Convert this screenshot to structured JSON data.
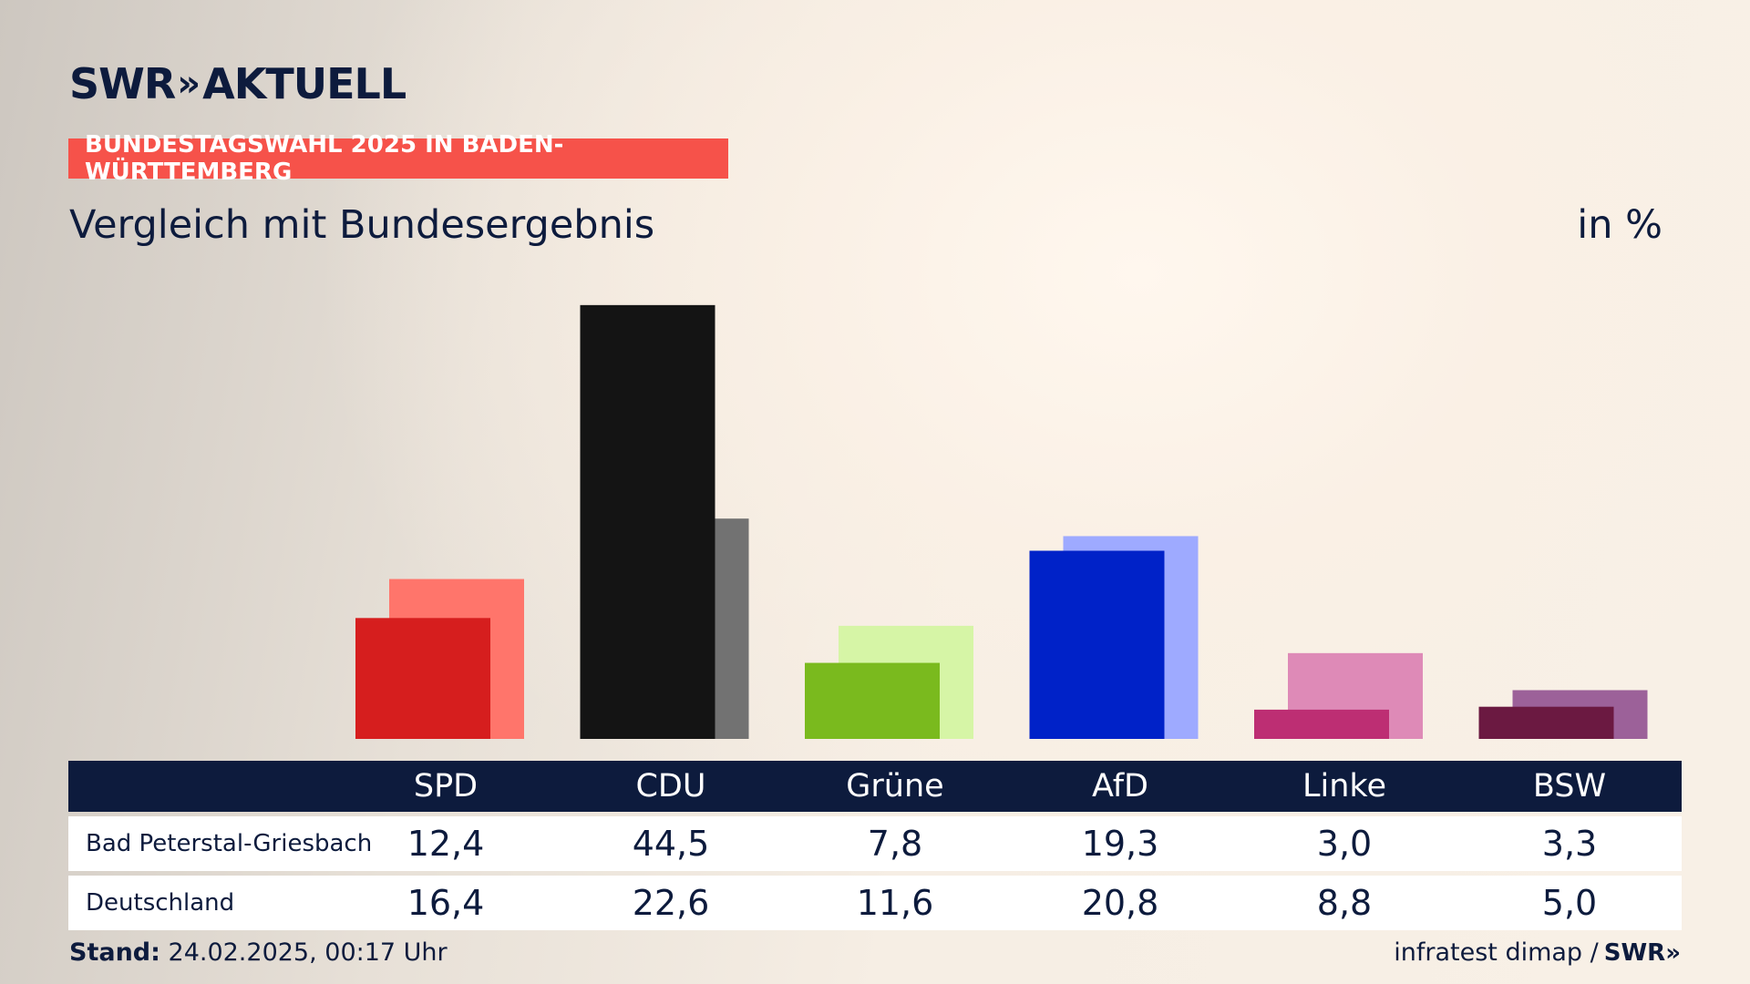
{
  "header": {
    "logo_text": "SWR",
    "logo_chevrons": "»",
    "logo_suffix": "AKTUELL",
    "badge": "BUNDESTAGSWAHL 2025 IN BADEN-WÜRTTEMBERG",
    "subtitle": "Vergleich mit Bundesergebnis",
    "unit": "in %"
  },
  "colors": {
    "primary": [
      "#d61e1e",
      "#141414",
      "#7aba1e",
      "#0022c8",
      "#bd2e73",
      "#6b1941"
    ],
    "secondary": [
      "#ff756b",
      "#727272",
      "#d6f5a6",
      "#9eaaff",
      "#de8ab7",
      "#9c6199"
    ],
    "navy": "#0d1b3d",
    "badge": "#f6524a"
  },
  "chart_data": {
    "type": "bar",
    "categories": [
      "SPD",
      "CDU",
      "Grüne",
      "AfD",
      "Linke",
      "BSW"
    ],
    "series": [
      {
        "name": "Bad Peterstal-Griesbach",
        "values": [
          12.4,
          44.5,
          7.8,
          19.3,
          3.0,
          3.3
        ]
      },
      {
        "name": "Deutschland",
        "values": [
          16.4,
          22.6,
          11.6,
          20.8,
          8.8,
          5.0
        ]
      }
    ]
  },
  "table": {
    "headers": [
      "SPD",
      "CDU",
      "Grüne",
      "AfD",
      "Linke",
      "BSW"
    ],
    "rows": [
      {
        "label": "Bad Peterstal-Griesbach",
        "values": [
          "12,4",
          "44,5",
          "7,8",
          "19,3",
          "3,0",
          "3,3"
        ]
      },
      {
        "label": "Deutschland",
        "values": [
          "16,4",
          "22,6",
          "11,6",
          "20,8",
          "8,8",
          "5,0"
        ]
      }
    ]
  },
  "footer": {
    "stand_label": "Stand:",
    "stand_value": "24.02.2025, 00:17 Uhr",
    "source": "infratest dimap /",
    "source_logo": "SWR»"
  }
}
